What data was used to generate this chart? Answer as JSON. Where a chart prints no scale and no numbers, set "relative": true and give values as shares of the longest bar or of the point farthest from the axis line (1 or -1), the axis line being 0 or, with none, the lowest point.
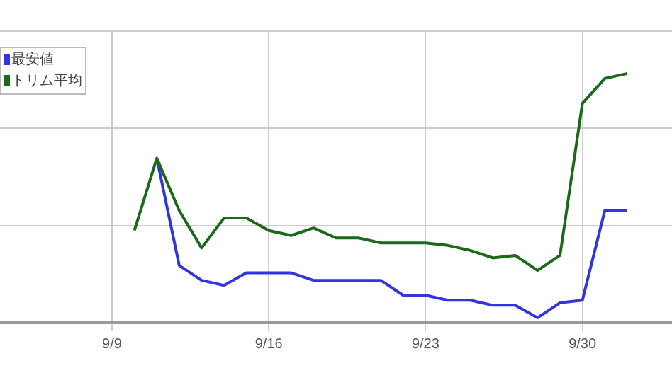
{
  "chart_data": {
    "type": "line",
    "relative": true,
    "grid": true,
    "legend": "top left",
    "marker": "none",
    "line_style": "solid",
    "x": [
      "--09-10",
      "--09-11",
      "--09-12",
      "--09-13",
      "--09-14",
      "--09-15",
      "--09-16",
      "--09-17",
      "--09-18",
      "--09-19",
      "--09-20",
      "--09-21",
      "--09-22",
      "--09-23",
      "--09-24",
      "--09-25",
      "--09-26",
      "--09-27",
      "--09-28",
      "--09-29",
      "--09-30",
      "--10-01",
      "--10-02"
    ],
    "xlim": [
      "--09-04",
      "--10-04"
    ],
    "xticks": [
      {
        "value": "--09-09",
        "label": "9/9"
      },
      {
        "value": "--09-16",
        "label": "9/16"
      },
      {
        "value": "--09-23",
        "label": "9/23"
      },
      {
        "value": "--09-30",
        "label": "9/30"
      }
    ],
    "series": [
      {
        "name": "最安値",
        "color": "#3333e0",
        "values": [
          null,
          0.66,
          0.23,
          0.17,
          0.15,
          0.2,
          0.2,
          0.2,
          0.17,
          0.17,
          0.17,
          0.17,
          0.11,
          0.11,
          0.09,
          0.09,
          0.07,
          0.07,
          0.02,
          0.08,
          0.09,
          0.45,
          0.45
        ]
      },
      {
        "name": "トリム平均",
        "color": "#1a6a1a",
        "values": [
          0.37,
          0.66,
          0.45,
          0.3,
          0.42,
          0.42,
          0.37,
          0.35,
          0.38,
          0.34,
          0.34,
          0.32,
          0.32,
          0.32,
          0.31,
          0.29,
          0.26,
          0.27,
          0.21,
          0.27,
          0.88,
          0.98,
          1
        ]
      }
    ]
  }
}
